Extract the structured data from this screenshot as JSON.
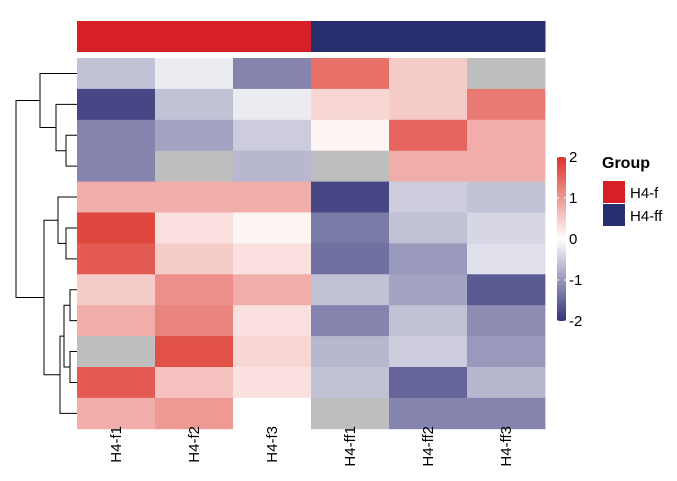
{
  "chart_data": {
    "type": "heatmap",
    "columns": [
      "H4-f1",
      "H4-f2",
      "H4-f3",
      "H4-ff1",
      "H4-ff2",
      "H4-ff3"
    ],
    "column_groups": [
      "H4-f",
      "H4-f",
      "H4-f",
      "H4-ff",
      "H4-ff",
      "H4-ff"
    ],
    "rows": 12,
    "values": [
      [
        -0.6,
        -0.2,
        -1.2,
        1.4,
        0.5,
        null
      ],
      [
        -1.8,
        -0.6,
        -0.2,
        0.4,
        0.5,
        1.3
      ],
      [
        -1.2,
        -0.9,
        -0.5,
        0.1,
        1.5,
        0.8
      ],
      [
        -1.2,
        null,
        -0.7,
        null,
        0.8,
        0.8
      ],
      [
        0.8,
        0.8,
        0.8,
        -1.8,
        -0.5,
        -0.6
      ],
      [
        1.8,
        0.3,
        0.1,
        -1.3,
        -0.6,
        -0.4
      ],
      [
        1.6,
        0.5,
        0.3,
        -1.4,
        -1.0,
        -0.3
      ],
      [
        0.5,
        1.1,
        0.8,
        -0.6,
        -0.9,
        -1.6
      ],
      [
        0.8,
        1.2,
        0.3,
        -1.2,
        -0.6,
        -1.1
      ],
      [
        null,
        1.7,
        0.4,
        -0.7,
        -0.5,
        -1.0
      ],
      [
        1.6,
        0.6,
        0.3,
        -0.6,
        -1.5,
        -0.7
      ],
      [
        0.8,
        1.0,
        0.0,
        null,
        -1.2,
        -1.2
      ]
    ],
    "missing_color": "#bebebe",
    "color_scale": {
      "min": -2,
      "mid": 0,
      "max": 2,
      "low_color": "#313695",
      "mid_color": "#ffffff",
      "high_color": "#d73027",
      "low_rgb": [
        50,
        50,
        120
      ],
      "mid_rgb": [
        255,
        255,
        255
      ],
      "high_rgb": [
        220,
        50,
        40
      ],
      "ticks": [
        2,
        1,
        0,
        -1,
        -2
      ],
      "tick_labels": [
        "2",
        "1",
        "0",
        "-1",
        "-2"
      ]
    },
    "row_dendrogram": true,
    "legend": {
      "title": "Group",
      "position": "right",
      "items": [
        {
          "label": "H4-f",
          "color": "#d61f26"
        },
        {
          "label": "H4-ff",
          "color": "#282e6e"
        }
      ]
    }
  }
}
